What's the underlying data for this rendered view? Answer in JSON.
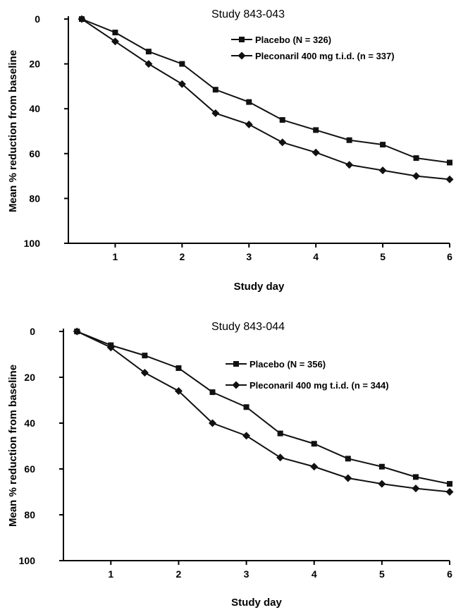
{
  "chart_data": [
    {
      "type": "line",
      "title": "Study 843-043",
      "xlabel": "Study day",
      "ylabel": "Mean % reduction from baseline",
      "xlim": [
        0.3,
        6
      ],
      "ylim": [
        0,
        100
      ],
      "y_inverted": true,
      "x_ticks": [
        1,
        2,
        3,
        4,
        5,
        6
      ],
      "y_ticks": [
        0,
        20,
        40,
        60,
        80,
        100
      ],
      "legend_position": "top-right",
      "series": [
        {
          "name": "Placebo (N = 326)",
          "marker": "square",
          "x": [
            0.5,
            1,
            1.5,
            2,
            2.5,
            3,
            3.5,
            4,
            4.5,
            5,
            5.5,
            6
          ],
          "values": [
            0,
            6,
            14.5,
            20,
            31.5,
            37,
            45,
            49.5,
            54,
            56,
            62,
            64
          ]
        },
        {
          "name": "Pleconaril 400 mg t.i.d. (n = 337)",
          "marker": "diamond",
          "x": [
            0.5,
            1,
            1.5,
            2,
            2.5,
            3,
            3.5,
            4,
            4.5,
            5,
            5.5,
            6
          ],
          "values": [
            0,
            10,
            20,
            29,
            42,
            47,
            55,
            59.5,
            65,
            67.5,
            70,
            71.5
          ]
        }
      ]
    },
    {
      "type": "line",
      "title": "Study 843-044",
      "xlabel": "Study day",
      "ylabel": "Mean % reduction from baseline",
      "xlim": [
        0.3,
        6
      ],
      "ylim": [
        0,
        100
      ],
      "y_inverted": true,
      "x_ticks": [
        1,
        2,
        3,
        4,
        5,
        6
      ],
      "y_ticks": [
        0,
        20,
        40,
        60,
        80,
        100
      ],
      "legend_position": "top-right",
      "series": [
        {
          "name": "Placebo (N = 356)",
          "marker": "square",
          "x": [
            0.5,
            1,
            1.5,
            2,
            2.5,
            3,
            3.5,
            4,
            4.5,
            5,
            5.5,
            6
          ],
          "values": [
            0,
            6,
            10.5,
            16,
            26.5,
            33,
            44.5,
            49,
            55.5,
            59,
            63.5,
            66.5
          ]
        },
        {
          "name": "Pleconaril 400 mg t.i.d. (n = 344)",
          "marker": "diamond",
          "x": [
            0.5,
            1,
            1.5,
            2,
            2.5,
            3,
            3.5,
            4,
            4.5,
            5,
            5.5,
            6
          ],
          "values": [
            0,
            7,
            18,
            26,
            40,
            45.5,
            55,
            59,
            64,
            66.5,
            68.5,
            70
          ]
        }
      ]
    }
  ]
}
